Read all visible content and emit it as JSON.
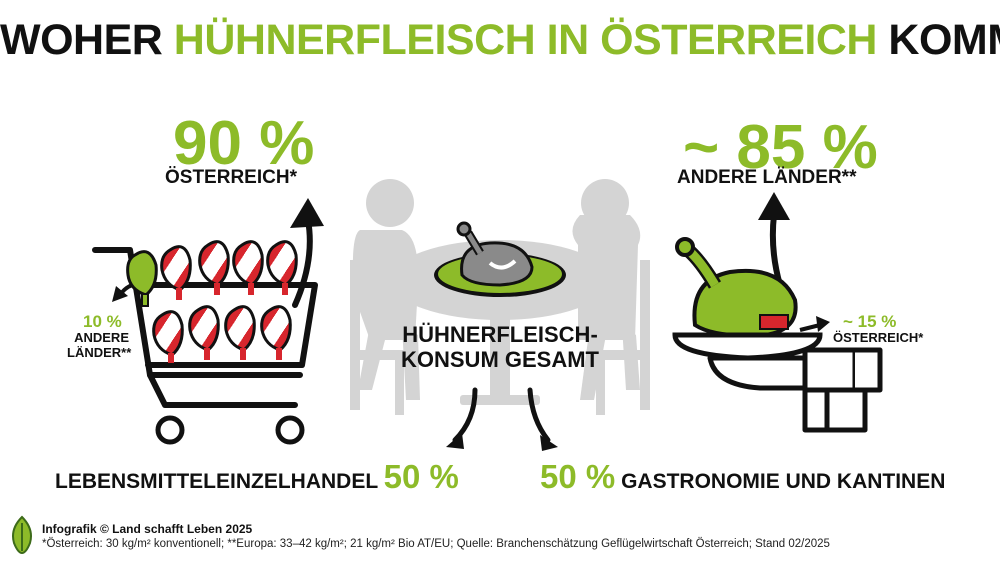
{
  "title": {
    "part1": "WOHER ",
    "part2": "HÜHNERFLEISCH IN ÖSTERREICH",
    "part3": " KOMMT"
  },
  "retail": {
    "main_pct": "90 %",
    "main_label": "ÖSTERREICH*",
    "side_pct": "10 %",
    "side_label_line1": "ANDERE",
    "side_label_line2": "LÄNDER**",
    "channel_label": "LEBENSMITTELEINZELHANDEL",
    "channel_pct": "50 %"
  },
  "gastro": {
    "main_pct": "~ 85 %",
    "main_label": "ANDERE LÄNDER**",
    "side_pct": "~ 15 %",
    "side_label": "ÖSTERREICH*",
    "channel_pct": "50 %",
    "channel_label": "GASTRONOMIE UND KANTINEN"
  },
  "center": {
    "line1": "HÜHNERFLEISCH-",
    "line2": "KONSUM GESAMT"
  },
  "footer": {
    "credit": "Infografik © Land schafft Leben 2025",
    "note": "*Österreich: 30 kg/m² konventionell; **Europa: 33–42 kg/m²; 21 kg/m² Bio AT/EU; Quelle: Branchenschätzung Geflügelwirtschaft Österreich; Stand 02/2025"
  },
  "colors": {
    "accent_green": "#8dbb29",
    "austria_red": "#d7262d",
    "silhouette_grey": "#d4d4d4",
    "text": "#111111"
  },
  "icons": [
    "shopping-cart-icon",
    "chicken-leg-icon",
    "roast-chicken-icon",
    "serving-platter-icon",
    "leaf-logo-icon",
    "arrow-icon"
  ]
}
